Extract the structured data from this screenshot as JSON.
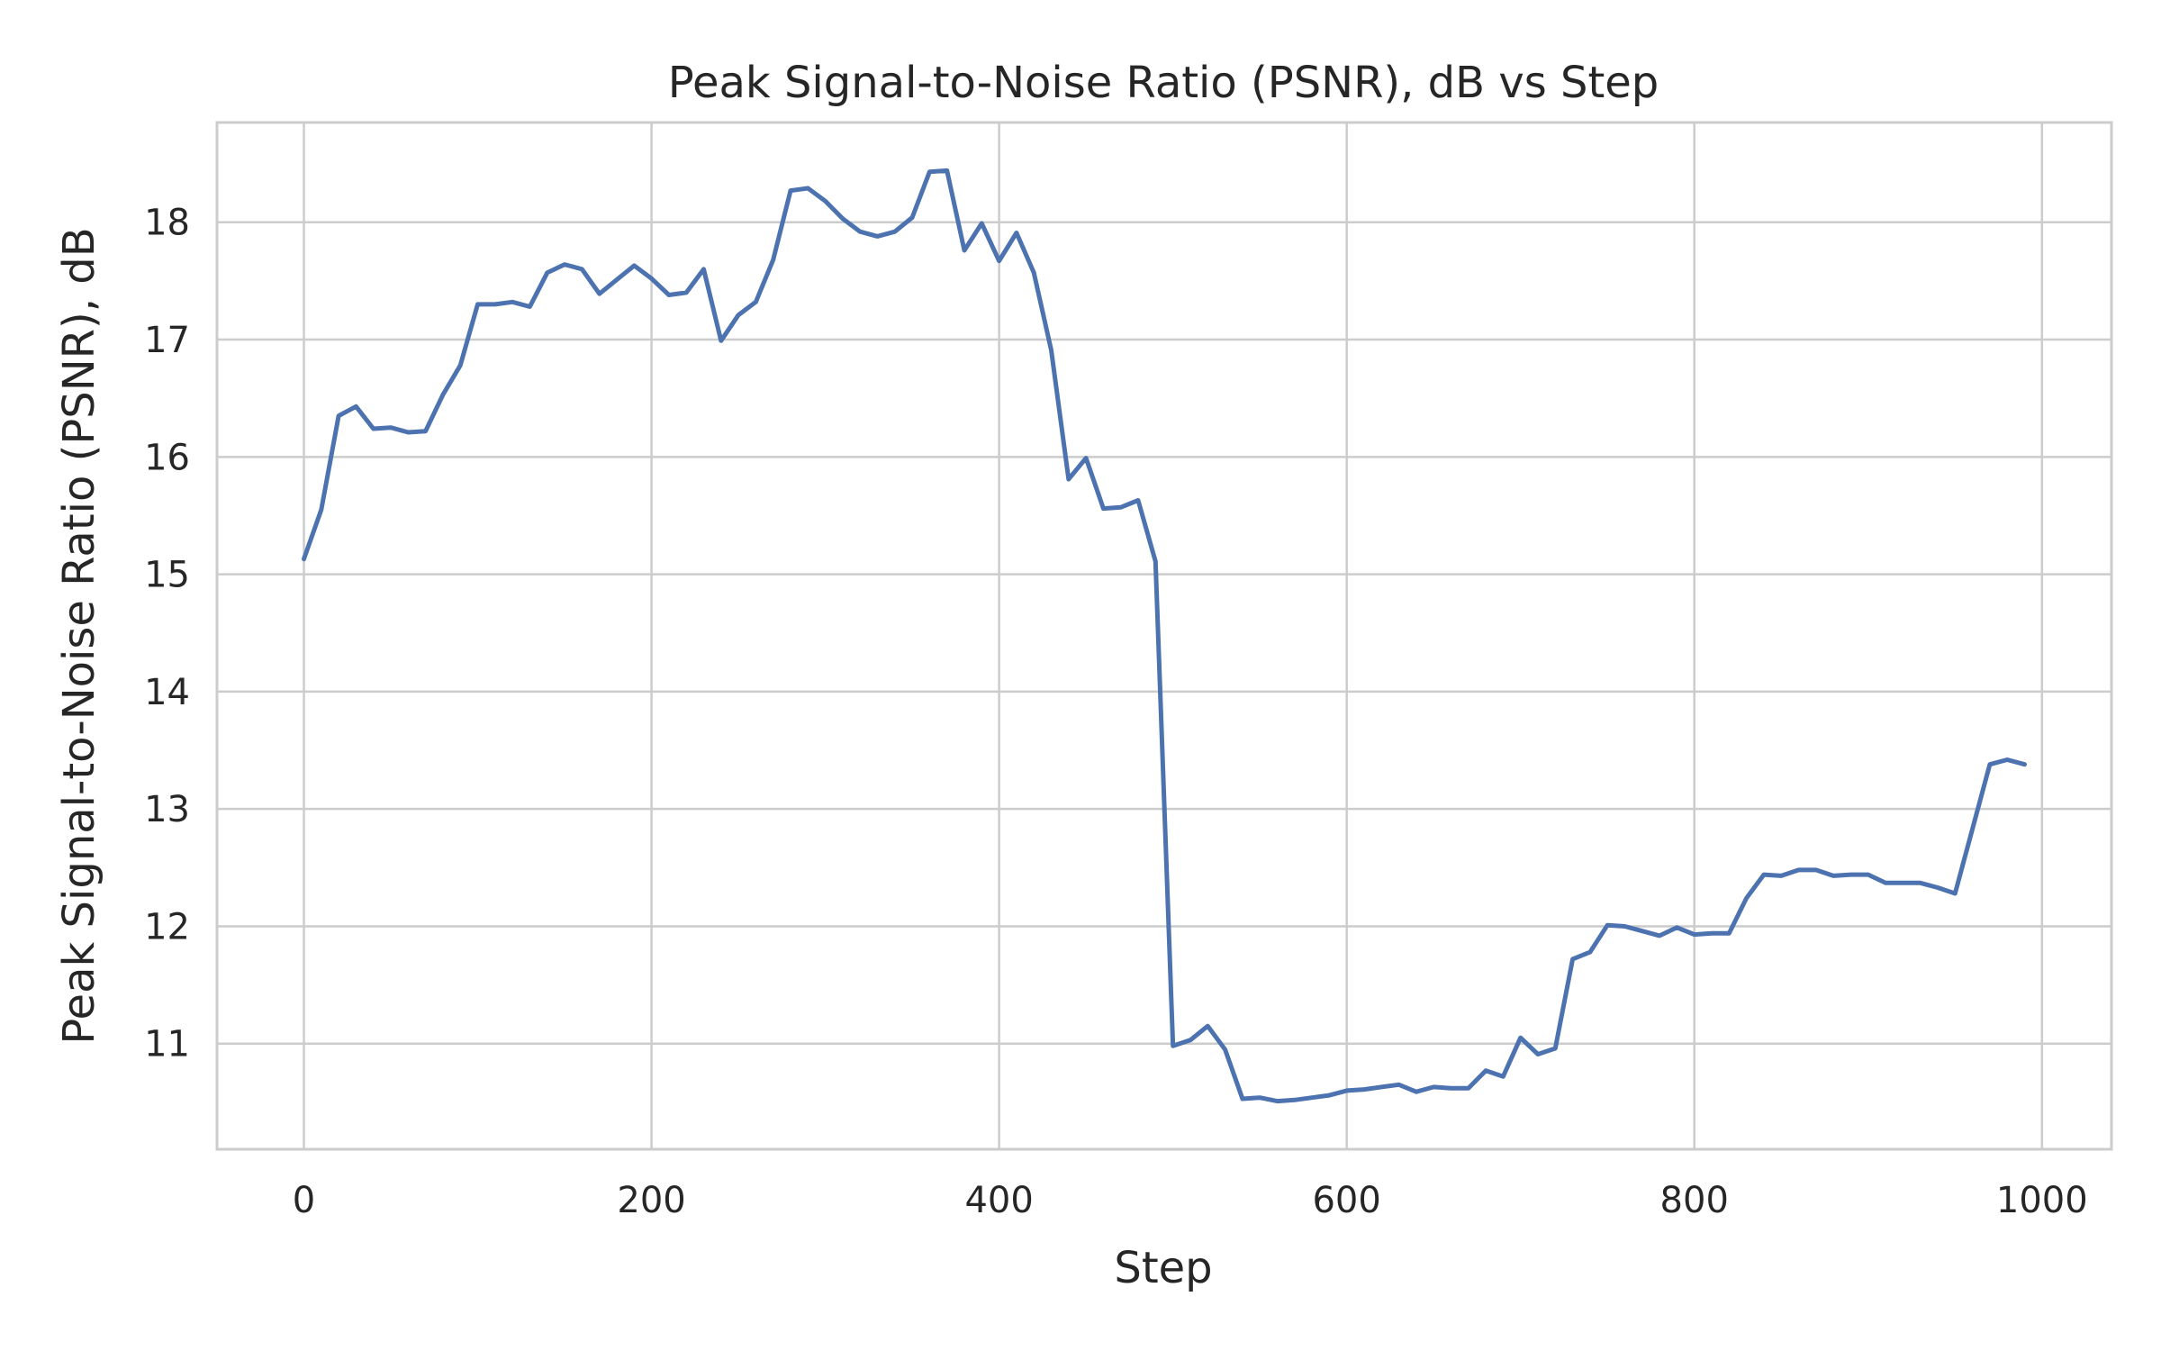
{
  "chart_data": {
    "type": "line",
    "title": "Peak Signal-to-Noise Ratio (PSNR), dB vs Step",
    "xlabel": "Step",
    "ylabel": "Peak Signal-to-Noise Ratio (PSNR), dB",
    "xlim": [
      -50,
      1040
    ],
    "ylim": [
      10.1,
      18.85
    ],
    "xticks": [
      0,
      200,
      400,
      600,
      800,
      1000
    ],
    "yticks": [
      11,
      12,
      13,
      14,
      15,
      16,
      17,
      18
    ],
    "grid": true,
    "colors": {
      "line": "#4c72b0",
      "grid": "#cccccc",
      "frame": "#cccccc",
      "text": "#262626"
    },
    "series": [
      {
        "x": [
          0,
          10,
          20,
          30,
          40,
          50,
          60,
          70,
          80,
          90,
          100,
          110,
          120,
          130,
          140,
          150,
          160,
          170,
          180,
          190,
          200,
          210,
          220,
          230,
          240,
          250,
          260,
          270,
          280,
          290,
          300,
          310,
          320,
          330,
          340,
          350,
          360,
          370,
          380,
          390,
          400,
          410,
          420,
          430,
          440,
          450,
          460,
          470,
          480,
          490,
          500,
          510,
          520,
          530,
          540,
          550,
          560,
          570,
          580,
          590,
          600,
          610,
          620,
          630,
          640,
          650,
          660,
          670,
          680,
          690,
          700,
          710,
          720,
          730,
          740,
          750,
          760,
          770,
          780,
          790,
          800,
          810,
          820,
          830,
          840,
          850,
          860,
          870,
          880,
          890,
          900,
          910,
          920,
          930,
          940,
          950,
          960,
          970,
          980,
          990
        ],
        "values": [
          15.13,
          15.55,
          16.35,
          16.43,
          16.24,
          16.25,
          16.21,
          16.22,
          16.53,
          16.78,
          17.3,
          17.3,
          17.32,
          17.28,
          17.57,
          17.64,
          17.6,
          17.39,
          17.51,
          17.63,
          17.52,
          17.38,
          17.4,
          17.6,
          16.99,
          17.21,
          17.32,
          17.68,
          18.27,
          18.29,
          18.18,
          18.03,
          17.92,
          17.88,
          17.92,
          18.04,
          18.43,
          18.44,
          17.76,
          17.99,
          17.67,
          17.91,
          17.57,
          16.91,
          15.81,
          15.99,
          15.56,
          15.57,
          15.63,
          15.11,
          10.98,
          11.03,
          11.15,
          10.95,
          10.53,
          10.54,
          10.51,
          10.52,
          10.54,
          10.56,
          10.6,
          10.61,
          10.63,
          10.65,
          10.59,
          10.63,
          10.62,
          10.62,
          10.77,
          10.72,
          11.05,
          10.91,
          10.96,
          11.72,
          11.78,
          12.01,
          12.0,
          11.96,
          11.92,
          11.99,
          11.93,
          11.94,
          11.94,
          12.24,
          12.44,
          12.43,
          12.48,
          12.48,
          12.43,
          12.44,
          12.44,
          12.37,
          12.37,
          12.37,
          12.33,
          12.28,
          12.83,
          13.38,
          13.42,
          13.38
        ]
      }
    ]
  }
}
